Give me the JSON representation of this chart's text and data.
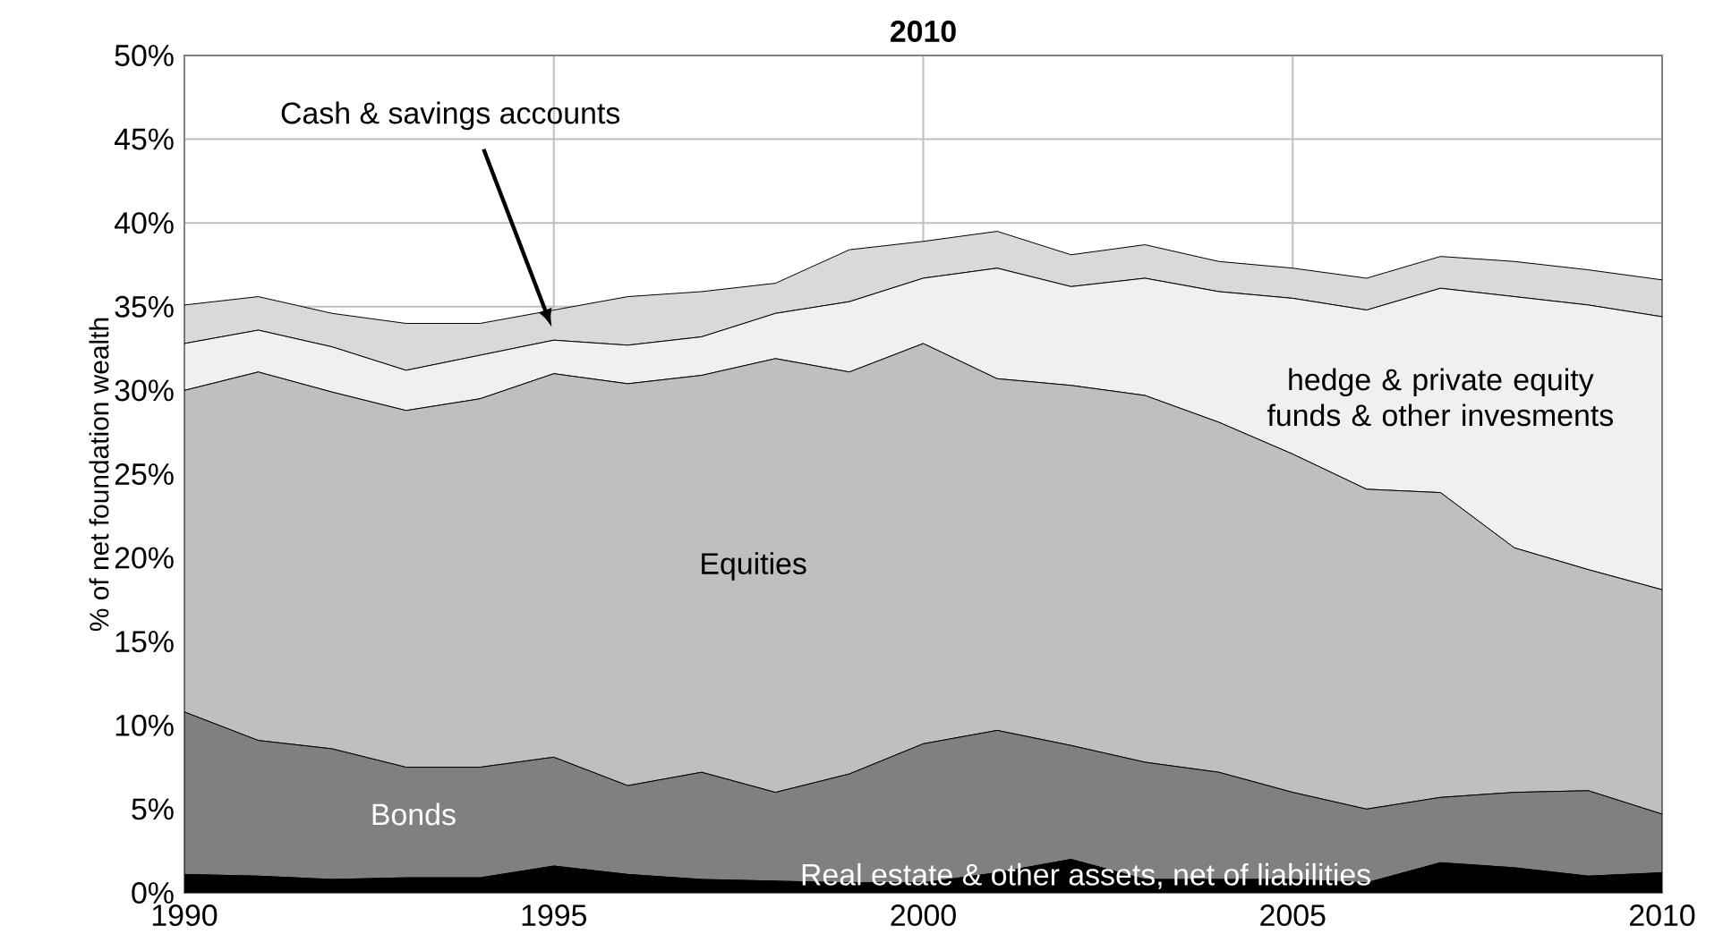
{
  "chart_data": {
    "type": "area",
    "stacked": true,
    "title": "2010",
    "ylabel": "%  of net foundation wealth",
    "x": [
      1990,
      1991,
      1992,
      1993,
      1994,
      1995,
      1996,
      1997,
      1998,
      1999,
      2000,
      2001,
      2002,
      2003,
      2004,
      2005,
      2006,
      2007,
      2008,
      2009,
      2010
    ],
    "xlim": [
      1990,
      2010
    ],
    "xticks": [
      1990,
      1995,
      2000,
      2005,
      2010
    ],
    "ylim": [
      0,
      50
    ],
    "yticks": [
      {
        "value": 0,
        "label": "0%"
      },
      {
        "value": 5,
        "label": "5%"
      },
      {
        "value": 10,
        "label": "10%"
      },
      {
        "value": 15,
        "label": "15%"
      },
      {
        "value": 20,
        "label": "20%"
      },
      {
        "value": 25,
        "label": "25%"
      },
      {
        "value": 30,
        "label": "30%"
      },
      {
        "value": 35,
        "label": "35%"
      },
      {
        "value": 40,
        "label": "40%"
      },
      {
        "value": 45,
        "label": "45%"
      },
      {
        "value": 50,
        "label": "50%"
      }
    ],
    "grid": true,
    "series": [
      {
        "name": "Real estate & other assets, net of liabilities",
        "color": "#000000",
        "values": [
          1.1,
          1.0,
          0.8,
          0.9,
          0.9,
          1.6,
          1.1,
          0.8,
          0.7,
          0.6,
          0.6,
          1.2,
          2.0,
          0.8,
          0.8,
          0.8,
          0.6,
          1.8,
          1.5,
          1.0,
          1.2
        ]
      },
      {
        "name": "Bonds",
        "color": "#808080",
        "values": [
          9.7,
          8.1,
          7.8,
          6.6,
          6.6,
          6.5,
          5.3,
          6.4,
          5.3,
          6.5,
          8.3,
          8.5,
          6.8,
          7.0,
          6.4,
          5.2,
          4.4,
          3.9,
          4.5,
          5.1,
          3.5
        ]
      },
      {
        "name": "Equities",
        "color": "#bfbfbf",
        "values": [
          19.2,
          22.0,
          21.3,
          21.3,
          22.0,
          22.9,
          24.0,
          23.7,
          25.9,
          24.0,
          23.9,
          21.0,
          21.5,
          21.9,
          20.9,
          20.2,
          19.1,
          18.2,
          14.6,
          13.2,
          13.4
        ]
      },
      {
        "name": "hedge & private equity funds & other invesments",
        "color": "#f0f0f0",
        "values": [
          2.8,
          2.5,
          2.7,
          2.4,
          2.6,
          2.0,
          2.3,
          2.3,
          2.7,
          4.2,
          3.9,
          6.6,
          5.9,
          7.0,
          7.8,
          9.3,
          10.7,
          12.2,
          15.0,
          15.8,
          16.3
        ]
      },
      {
        "name": "Cash & savings accounts",
        "color": "#d9d9d9",
        "values": [
          2.3,
          2.0,
          2.0,
          2.8,
          1.9,
          1.8,
          2.9,
          2.7,
          1.8,
          3.1,
          2.2,
          2.2,
          1.9,
          2.0,
          1.8,
          1.8,
          1.9,
          1.9,
          2.1,
          2.1,
          2.2
        ]
      }
    ]
  }
}
